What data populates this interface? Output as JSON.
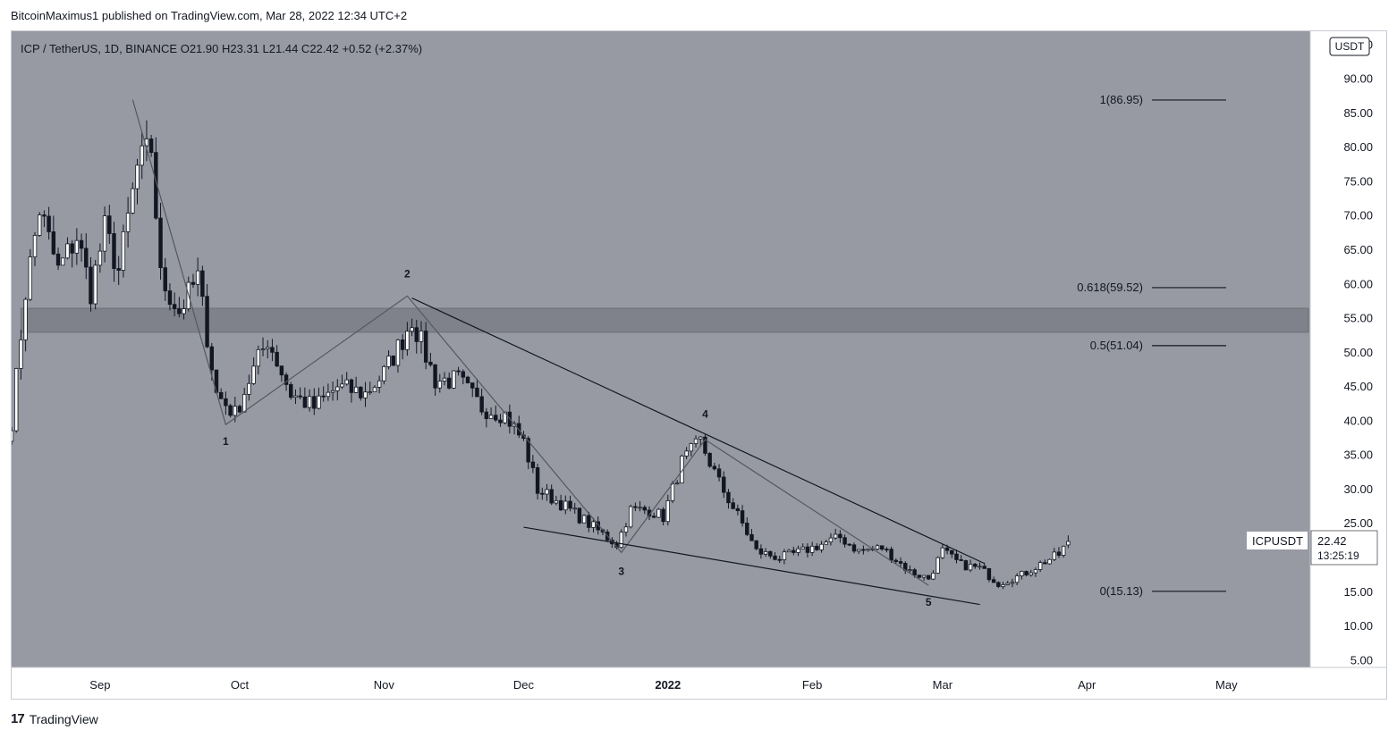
{
  "publisher_line": "BitcoinMaximus1 published on TradingView.com, Mar 28, 2022 12:34 UTC+2",
  "footer": {
    "logo_mark": "17",
    "brand": "TradingView"
  },
  "chart_data": {
    "type": "candlestick",
    "header": {
      "symbol": "ICP / TetherUS, 1D, BINANCE",
      "ohlc": [
        {
          "label": "O",
          "value": "21.90"
        },
        {
          "label": "H",
          "value": "23.31"
        },
        {
          "label": "L",
          "value": "21.44"
        },
        {
          "label": "C",
          "value": "22.42"
        }
      ],
      "change": "+0.52 (+2.37%)"
    },
    "currency": "USDT",
    "ylim": [
      4,
      97
    ],
    "y_ticks": [
      "5.00",
      "10.00",
      "15.00",
      "20.00",
      "25.00",
      "30.00",
      "35.00",
      "40.00",
      "45.00",
      "50.00",
      "55.00",
      "60.00",
      "65.00",
      "70.00",
      "75.00",
      "80.00",
      "85.00",
      "90.00",
      "95.00"
    ],
    "x_ticks": [
      {
        "label": "Sep",
        "date": "2021-09-01"
      },
      {
        "label": "Oct",
        "date": "2021-10-01"
      },
      {
        "label": "Nov",
        "date": "2021-11-01"
      },
      {
        "label": "Dec",
        "date": "2021-12-01"
      },
      {
        "label": "2022",
        "date": "2022-01-01",
        "bold": true
      },
      {
        "label": "Feb",
        "date": "2022-02-01"
      },
      {
        "label": "Mar",
        "date": "2022-03-01"
      },
      {
        "label": "Apr",
        "date": "2022-04-01"
      },
      {
        "label": "May",
        "date": "2022-05-01"
      }
    ],
    "x_range": [
      "2021-08-13",
      "2022-05-19"
    ],
    "keypoints": [
      [
        "2021-08-13",
        40
      ],
      [
        "2021-08-16",
        59
      ],
      [
        "2021-08-19",
        71
      ],
      [
        "2021-08-23",
        62
      ],
      [
        "2021-08-27",
        67
      ],
      [
        "2021-08-30",
        59
      ],
      [
        "2021-09-02",
        68
      ],
      [
        "2021-09-05",
        62
      ],
      [
        "2021-09-09",
        77
      ],
      [
        "2021-09-12",
        80
      ],
      [
        "2021-09-14",
        61
      ],
      [
        "2021-09-18",
        56
      ],
      [
        "2021-09-22",
        61
      ],
      [
        "2021-09-26",
        44
      ],
      [
        "2021-09-30",
        41
      ],
      [
        "2021-10-03",
        46
      ],
      [
        "2021-10-07",
        52
      ],
      [
        "2021-10-12",
        44
      ],
      [
        "2021-10-17",
        42
      ],
      [
        "2021-10-22",
        45
      ],
      [
        "2021-10-28",
        44
      ],
      [
        "2021-11-01",
        47
      ],
      [
        "2021-11-05",
        52
      ],
      [
        "2021-11-07",
        55
      ],
      [
        "2021-11-12",
        46
      ],
      [
        "2021-11-17",
        46
      ],
      [
        "2021-11-22",
        42
      ],
      [
        "2021-11-27",
        41
      ],
      [
        "2021-12-01",
        37
      ],
      [
        "2021-12-04",
        30
      ],
      [
        "2021-12-09",
        28
      ],
      [
        "2021-12-15",
        25
      ],
      [
        "2021-12-21",
        22
      ],
      [
        "2021-12-24",
        27
      ],
      [
        "2021-12-28",
        27
      ],
      [
        "2021-12-31",
        26
      ],
      [
        "2022-01-04",
        34
      ],
      [
        "2022-01-08",
        37
      ],
      [
        "2022-01-12",
        31
      ],
      [
        "2022-01-17",
        25
      ],
      [
        "2022-01-20",
        21
      ],
      [
        "2022-01-25",
        20
      ],
      [
        "2022-01-30",
        21
      ],
      [
        "2022-02-07",
        23
      ],
      [
        "2022-02-11",
        21
      ],
      [
        "2022-02-16",
        21.5
      ],
      [
        "2022-02-22",
        18
      ],
      [
        "2022-02-26",
        17
      ],
      [
        "2022-03-01",
        21
      ],
      [
        "2022-03-05",
        19
      ],
      [
        "2022-03-09",
        18.5
      ],
      [
        "2022-03-13",
        16.3
      ],
      [
        "2022-03-18",
        17.5
      ],
      [
        "2022-03-23",
        19.5
      ],
      [
        "2022-03-26",
        20.5
      ],
      [
        "2022-03-28",
        22.42
      ]
    ],
    "last_candle": {
      "date": "2022-03-28",
      "open": 21.9,
      "high": 23.31,
      "low": 21.44,
      "close": 22.42
    },
    "resistance_zone": [
      53,
      56.5
    ],
    "fib_levels": [
      {
        "label": "1(86.95)",
        "value": 86.95
      },
      {
        "label": "0.618(59.52)",
        "value": 59.52
      },
      {
        "label": "0.5(51.04)",
        "value": 51.04
      },
      {
        "label": "0(15.13)",
        "value": 15.13
      }
    ],
    "wave_path": [
      [
        "2021-09-08",
        87
      ],
      [
        "2021-09-28",
        39.5
      ],
      [
        "2021-11-06",
        58.3
      ],
      [
        "2021-12-22",
        20.8
      ],
      [
        "2022-01-09",
        37.3
      ],
      [
        "2022-02-26",
        16
      ]
    ],
    "wave_labels": [
      {
        "label": "1",
        "date": "2021-09-28",
        "value": 36.5
      },
      {
        "label": "2",
        "date": "2021-11-06",
        "value": 61
      },
      {
        "label": "3",
        "date": "2021-12-22",
        "value": 17.5
      },
      {
        "label": "4",
        "date": "2022-01-09",
        "value": 40.5
      },
      {
        "label": "5",
        "date": "2022-02-26",
        "value": 13.0
      }
    ],
    "wedge_upper": [
      [
        "2021-11-07",
        58
      ],
      [
        "2022-03-10",
        19.2
      ]
    ],
    "wedge_lower": [
      [
        "2021-12-01",
        24.5
      ],
      [
        "2022-03-09",
        13.2
      ]
    ],
    "last_price": {
      "symbol": "ICPUSDT",
      "price": "22.42",
      "countdown": "13:25:19"
    }
  }
}
